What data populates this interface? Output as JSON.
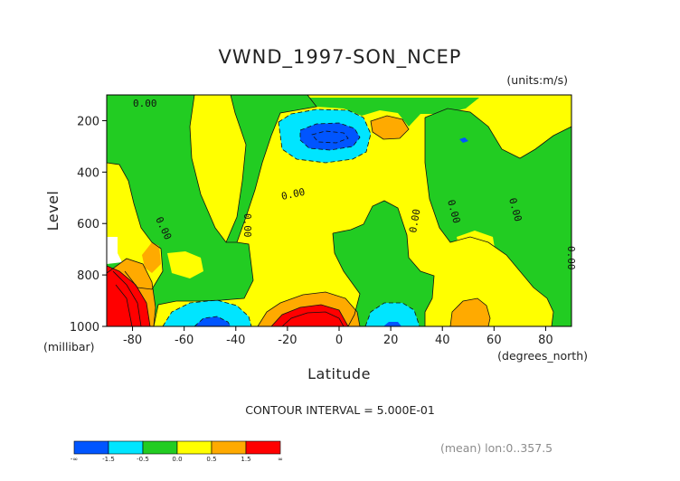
{
  "chart_data": {
    "type": "heatmap",
    "title": "VWND_1997-SON_NCEP",
    "units": "(units:m/s)",
    "xlabel": "Latitude",
    "xunits": "(degrees_north)",
    "ylabel": "Level",
    "yunits": "(millibar)",
    "xlim": [
      -90,
      90
    ],
    "ylim": [
      1000,
      100
    ],
    "xticks": [
      "-80",
      "-60",
      "-40",
      "-20",
      "0",
      "20",
      "40",
      "60",
      "80"
    ],
    "yticks": [
      "200",
      "400",
      "600",
      "800",
      "1000"
    ],
    "contour_interval": "CONTOUR INTERVAL = 5.000E-01",
    "contour_label": "0.00",
    "mean_note": "(mean) lon:0..357.5",
    "colorbar": {
      "colors": [
        "#0055ff",
        "#00e5ff",
        "#22cc22",
        "#ffff00",
        "#ffaa00",
        "#ff0000"
      ],
      "labels": [
        "-∞",
        "-1.5",
        "-0.5",
        "0.0",
        "0.5",
        "1.5",
        "∞"
      ]
    }
  }
}
